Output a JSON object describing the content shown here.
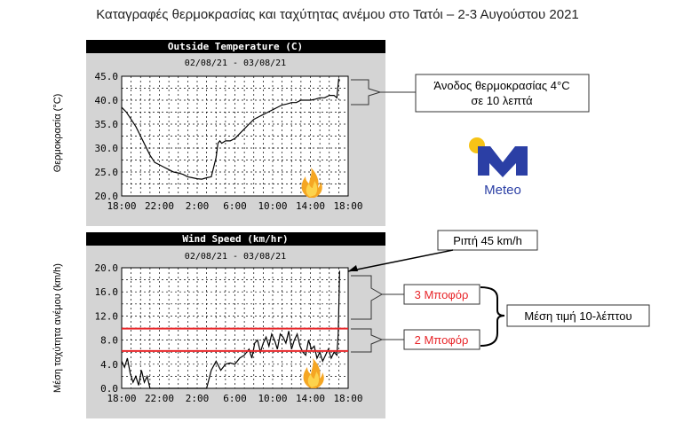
{
  "title": "Καταγραφές θερμοκρασίας και ταχύτητας ανέμου στο Τατόι – 2-3 Αυγούστου 2021",
  "colors": {
    "header_bg": "#000000",
    "panel_bg": "#d4d4d4",
    "plot_bg": "#ffffff",
    "series": "#000000",
    "reference_lines": "#e8262a",
    "annotation_red": "#e8262a",
    "logo_blue": "#2b3fa5",
    "logo_yellow": "#f6c316"
  },
  "icons": [
    "fire-icon",
    "meteo-logo"
  ],
  "chart_data": [
    {
      "type": "line",
      "title": "Outside Temperature (C)",
      "subtitle": "02/08/21 - 03/08/21",
      "ylabel": "Θερμοκρασία (°C)",
      "xlabel": "",
      "ylim": [
        20,
        45
      ],
      "yticks": [
        "20.0",
        "25.0",
        "30.0",
        "35.0",
        "40.0",
        "45.0"
      ],
      "xlim": [
        0,
        24
      ],
      "xticks": [
        "18:00",
        "22:00",
        "2:00",
        "6:00",
        "10:00",
        "14:00",
        "18:00"
      ],
      "grid": true,
      "x": [
        0,
        0.5,
        1,
        1.5,
        2,
        2.5,
        3,
        3.5,
        4,
        4.5,
        5,
        5.5,
        6,
        6.5,
        7,
        7.5,
        8,
        8.5,
        9,
        9.5,
        10,
        10.2,
        10.4,
        10.6,
        11,
        11.5,
        12,
        12.5,
        13,
        13.5,
        14,
        14.5,
        15,
        15.5,
        16,
        16.5,
        17,
        17.5,
        18,
        18.5,
        19,
        19.5,
        20,
        20.5,
        21,
        21.5,
        22,
        22.5,
        22.8,
        23.0,
        23.1
      ],
      "y": [
        38.5,
        37.5,
        36.0,
        34.5,
        32.5,
        30.5,
        28.5,
        27.0,
        26.5,
        26.0,
        25.5,
        25.0,
        24.8,
        24.5,
        24.0,
        23.8,
        23.6,
        23.5,
        23.8,
        24.0,
        28.0,
        31.0,
        31.5,
        31.0,
        31.5,
        31.5,
        32.0,
        33.0,
        34.0,
        35.0,
        36.0,
        36.5,
        37.0,
        37.5,
        38.0,
        38.5,
        39.0,
        39.2,
        39.5,
        39.5,
        40.0,
        40.0,
        40.0,
        40.2,
        40.5,
        40.5,
        41.0,
        41.0,
        40.5,
        44.5,
        44.0
      ]
    },
    {
      "type": "line",
      "title": "Wind Speed (km/hr)",
      "subtitle": "02/08/21 - 03/08/21",
      "ylabel": "Μέση ταχύτητα ανέμου (km/h)",
      "xlabel": "",
      "ylim": [
        0,
        20
      ],
      "yticks": [
        "0.0",
        "4.0",
        "8.0",
        "12.0",
        "16.0",
        "20.0"
      ],
      "xlim": [
        0,
        24
      ],
      "xticks": [
        "18:00",
        "22:00",
        "2:00",
        "6:00",
        "10:00",
        "14:00",
        "18:00"
      ],
      "grid": true,
      "reference_lines": [
        9.9,
        6.2
      ],
      "x": [
        0,
        0.3,
        0.6,
        0.9,
        1.2,
        1.5,
        1.8,
        2.1,
        2.4,
        2.7,
        3.0,
        3.5,
        9.0,
        9.5,
        10.0,
        10.5,
        11.0,
        11.5,
        12.0,
        12.5,
        13.0,
        13.5,
        13.8,
        14.1,
        14.4,
        14.7,
        15.0,
        15.3,
        15.6,
        15.9,
        16.2,
        16.5,
        16.8,
        17.1,
        17.4,
        17.7,
        18.0,
        18.3,
        18.6,
        18.9,
        19.2,
        19.5,
        19.8,
        20.1,
        20.4,
        20.7,
        21.0,
        21.3,
        21.6,
        21.9,
        22.2,
        22.5,
        22.8,
        22.95,
        23.1
      ],
      "y": [
        4.5,
        3.5,
        5.0,
        2.5,
        1.0,
        2.0,
        0.5,
        3.0,
        1.0,
        2.0,
        0.0,
        0.0,
        0.0,
        3.0,
        4.5,
        3.0,
        4.0,
        4.2,
        4.0,
        5.0,
        5.5,
        6.5,
        5.0,
        7.5,
        8.0,
        6.0,
        7.5,
        8.5,
        7.0,
        9.0,
        8.0,
        6.5,
        9.0,
        8.5,
        7.5,
        9.5,
        6.5,
        8.0,
        9.0,
        7.0,
        6.0,
        5.5,
        8.0,
        6.5,
        7.0,
        5.0,
        6.0,
        4.5,
        5.5,
        6.5,
        5.0,
        6.0,
        5.5,
        9.0,
        19.5
      ]
    }
  ],
  "annotations": {
    "temperature_rise": "Άνοδος θερμοκρασίας 4°C σε 10 λεπτά",
    "gust": "Ριπή 45 km/h",
    "beaufort_3": "3 Μποφόρ",
    "beaufort_2": "2 Μποφόρ",
    "mean_10min": "Μέση τιμή 10-λέπτου"
  },
  "logo": {
    "text": "Meteo"
  }
}
